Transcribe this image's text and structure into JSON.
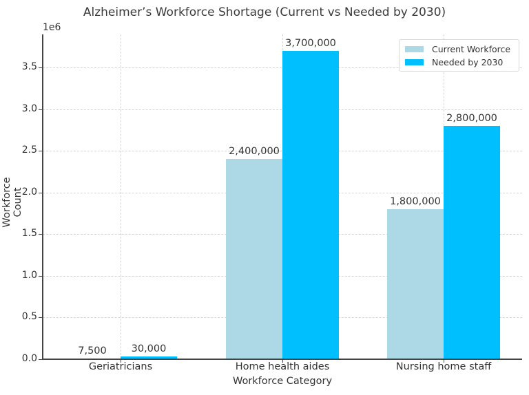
{
  "chart_data": {
    "type": "bar",
    "title": "Alzheimer’s Workforce Shortage (Current vs Needed by 2030)",
    "xlabel": "Workforce Category",
    "ylabel": "Workforce Count",
    "y_offset_label": "1e6",
    "categories": [
      "Geriatricians",
      "Home health aides",
      "Nursing home staff"
    ],
    "series": [
      {
        "name": "Current Workforce",
        "color": "#add8e6",
        "values": [
          7500,
          2400000,
          1800000
        ],
        "labels": [
          "7,500",
          "2,400,000",
          "1,800,000"
        ]
      },
      {
        "name": "Needed by 2030",
        "color": "#00bfff",
        "values": [
          30000,
          3700000,
          2800000
        ],
        "labels": [
          "30,000",
          "3,700,000",
          "2,800,000"
        ]
      }
    ],
    "ylim": [
      0,
      3885000
    ],
    "yticks": [
      "0.0",
      "0.5",
      "1.0",
      "1.5",
      "2.0",
      "2.5",
      "3.0",
      "3.5"
    ],
    "grid": true,
    "legend_position": "upper right"
  }
}
